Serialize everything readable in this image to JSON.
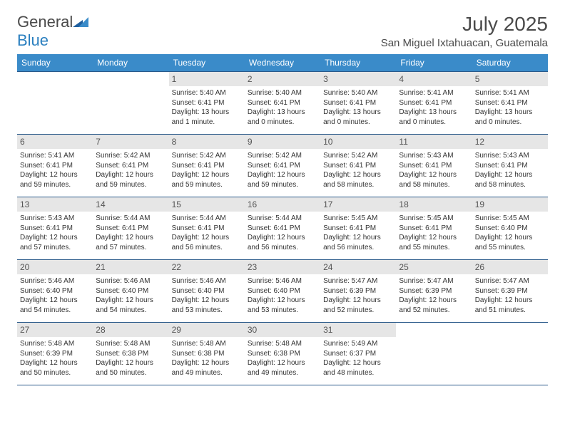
{
  "logo": {
    "text1": "General",
    "text2": "Blue"
  },
  "title": "July 2025",
  "location": "San Miguel Ixtahuacan, Guatemala",
  "colors": {
    "header_bg": "#3a8bc9",
    "header_text": "#ffffff",
    "row_border": "#2a5a8a",
    "daynum_bg": "#e6e6e6",
    "daynum_text": "#555555",
    "body_text": "#333333",
    "logo_gray": "#4a4a4a",
    "logo_blue": "#2a7fbf"
  },
  "day_names": [
    "Sunday",
    "Monday",
    "Tuesday",
    "Wednesday",
    "Thursday",
    "Friday",
    "Saturday"
  ],
  "weeks": [
    [
      {
        "empty": true
      },
      {
        "empty": true
      },
      {
        "num": "1",
        "sunrise": "Sunrise: 5:40 AM",
        "sunset": "Sunset: 6:41 PM",
        "daylight1": "Daylight: 13 hours",
        "daylight2": "and 1 minute."
      },
      {
        "num": "2",
        "sunrise": "Sunrise: 5:40 AM",
        "sunset": "Sunset: 6:41 PM",
        "daylight1": "Daylight: 13 hours",
        "daylight2": "and 0 minutes."
      },
      {
        "num": "3",
        "sunrise": "Sunrise: 5:40 AM",
        "sunset": "Sunset: 6:41 PM",
        "daylight1": "Daylight: 13 hours",
        "daylight2": "and 0 minutes."
      },
      {
        "num": "4",
        "sunrise": "Sunrise: 5:41 AM",
        "sunset": "Sunset: 6:41 PM",
        "daylight1": "Daylight: 13 hours",
        "daylight2": "and 0 minutes."
      },
      {
        "num": "5",
        "sunrise": "Sunrise: 5:41 AM",
        "sunset": "Sunset: 6:41 PM",
        "daylight1": "Daylight: 13 hours",
        "daylight2": "and 0 minutes."
      }
    ],
    [
      {
        "num": "6",
        "sunrise": "Sunrise: 5:41 AM",
        "sunset": "Sunset: 6:41 PM",
        "daylight1": "Daylight: 12 hours",
        "daylight2": "and 59 minutes."
      },
      {
        "num": "7",
        "sunrise": "Sunrise: 5:42 AM",
        "sunset": "Sunset: 6:41 PM",
        "daylight1": "Daylight: 12 hours",
        "daylight2": "and 59 minutes."
      },
      {
        "num": "8",
        "sunrise": "Sunrise: 5:42 AM",
        "sunset": "Sunset: 6:41 PM",
        "daylight1": "Daylight: 12 hours",
        "daylight2": "and 59 minutes."
      },
      {
        "num": "9",
        "sunrise": "Sunrise: 5:42 AM",
        "sunset": "Sunset: 6:41 PM",
        "daylight1": "Daylight: 12 hours",
        "daylight2": "and 59 minutes."
      },
      {
        "num": "10",
        "sunrise": "Sunrise: 5:42 AM",
        "sunset": "Sunset: 6:41 PM",
        "daylight1": "Daylight: 12 hours",
        "daylight2": "and 58 minutes."
      },
      {
        "num": "11",
        "sunrise": "Sunrise: 5:43 AM",
        "sunset": "Sunset: 6:41 PM",
        "daylight1": "Daylight: 12 hours",
        "daylight2": "and 58 minutes."
      },
      {
        "num": "12",
        "sunrise": "Sunrise: 5:43 AM",
        "sunset": "Sunset: 6:41 PM",
        "daylight1": "Daylight: 12 hours",
        "daylight2": "and 58 minutes."
      }
    ],
    [
      {
        "num": "13",
        "sunrise": "Sunrise: 5:43 AM",
        "sunset": "Sunset: 6:41 PM",
        "daylight1": "Daylight: 12 hours",
        "daylight2": "and 57 minutes."
      },
      {
        "num": "14",
        "sunrise": "Sunrise: 5:44 AM",
        "sunset": "Sunset: 6:41 PM",
        "daylight1": "Daylight: 12 hours",
        "daylight2": "and 57 minutes."
      },
      {
        "num": "15",
        "sunrise": "Sunrise: 5:44 AM",
        "sunset": "Sunset: 6:41 PM",
        "daylight1": "Daylight: 12 hours",
        "daylight2": "and 56 minutes."
      },
      {
        "num": "16",
        "sunrise": "Sunrise: 5:44 AM",
        "sunset": "Sunset: 6:41 PM",
        "daylight1": "Daylight: 12 hours",
        "daylight2": "and 56 minutes."
      },
      {
        "num": "17",
        "sunrise": "Sunrise: 5:45 AM",
        "sunset": "Sunset: 6:41 PM",
        "daylight1": "Daylight: 12 hours",
        "daylight2": "and 56 minutes."
      },
      {
        "num": "18",
        "sunrise": "Sunrise: 5:45 AM",
        "sunset": "Sunset: 6:41 PM",
        "daylight1": "Daylight: 12 hours",
        "daylight2": "and 55 minutes."
      },
      {
        "num": "19",
        "sunrise": "Sunrise: 5:45 AM",
        "sunset": "Sunset: 6:40 PM",
        "daylight1": "Daylight: 12 hours",
        "daylight2": "and 55 minutes."
      }
    ],
    [
      {
        "num": "20",
        "sunrise": "Sunrise: 5:46 AM",
        "sunset": "Sunset: 6:40 PM",
        "daylight1": "Daylight: 12 hours",
        "daylight2": "and 54 minutes."
      },
      {
        "num": "21",
        "sunrise": "Sunrise: 5:46 AM",
        "sunset": "Sunset: 6:40 PM",
        "daylight1": "Daylight: 12 hours",
        "daylight2": "and 54 minutes."
      },
      {
        "num": "22",
        "sunrise": "Sunrise: 5:46 AM",
        "sunset": "Sunset: 6:40 PM",
        "daylight1": "Daylight: 12 hours",
        "daylight2": "and 53 minutes."
      },
      {
        "num": "23",
        "sunrise": "Sunrise: 5:46 AM",
        "sunset": "Sunset: 6:40 PM",
        "daylight1": "Daylight: 12 hours",
        "daylight2": "and 53 minutes."
      },
      {
        "num": "24",
        "sunrise": "Sunrise: 5:47 AM",
        "sunset": "Sunset: 6:39 PM",
        "daylight1": "Daylight: 12 hours",
        "daylight2": "and 52 minutes."
      },
      {
        "num": "25",
        "sunrise": "Sunrise: 5:47 AM",
        "sunset": "Sunset: 6:39 PM",
        "daylight1": "Daylight: 12 hours",
        "daylight2": "and 52 minutes."
      },
      {
        "num": "26",
        "sunrise": "Sunrise: 5:47 AM",
        "sunset": "Sunset: 6:39 PM",
        "daylight1": "Daylight: 12 hours",
        "daylight2": "and 51 minutes."
      }
    ],
    [
      {
        "num": "27",
        "sunrise": "Sunrise: 5:48 AM",
        "sunset": "Sunset: 6:39 PM",
        "daylight1": "Daylight: 12 hours",
        "daylight2": "and 50 minutes."
      },
      {
        "num": "28",
        "sunrise": "Sunrise: 5:48 AM",
        "sunset": "Sunset: 6:38 PM",
        "daylight1": "Daylight: 12 hours",
        "daylight2": "and 50 minutes."
      },
      {
        "num": "29",
        "sunrise": "Sunrise: 5:48 AM",
        "sunset": "Sunset: 6:38 PM",
        "daylight1": "Daylight: 12 hours",
        "daylight2": "and 49 minutes."
      },
      {
        "num": "30",
        "sunrise": "Sunrise: 5:48 AM",
        "sunset": "Sunset: 6:38 PM",
        "daylight1": "Daylight: 12 hours",
        "daylight2": "and 49 minutes."
      },
      {
        "num": "31",
        "sunrise": "Sunrise: 5:49 AM",
        "sunset": "Sunset: 6:37 PM",
        "daylight1": "Daylight: 12 hours",
        "daylight2": "and 48 minutes."
      },
      {
        "empty": true
      },
      {
        "empty": true
      }
    ]
  ]
}
